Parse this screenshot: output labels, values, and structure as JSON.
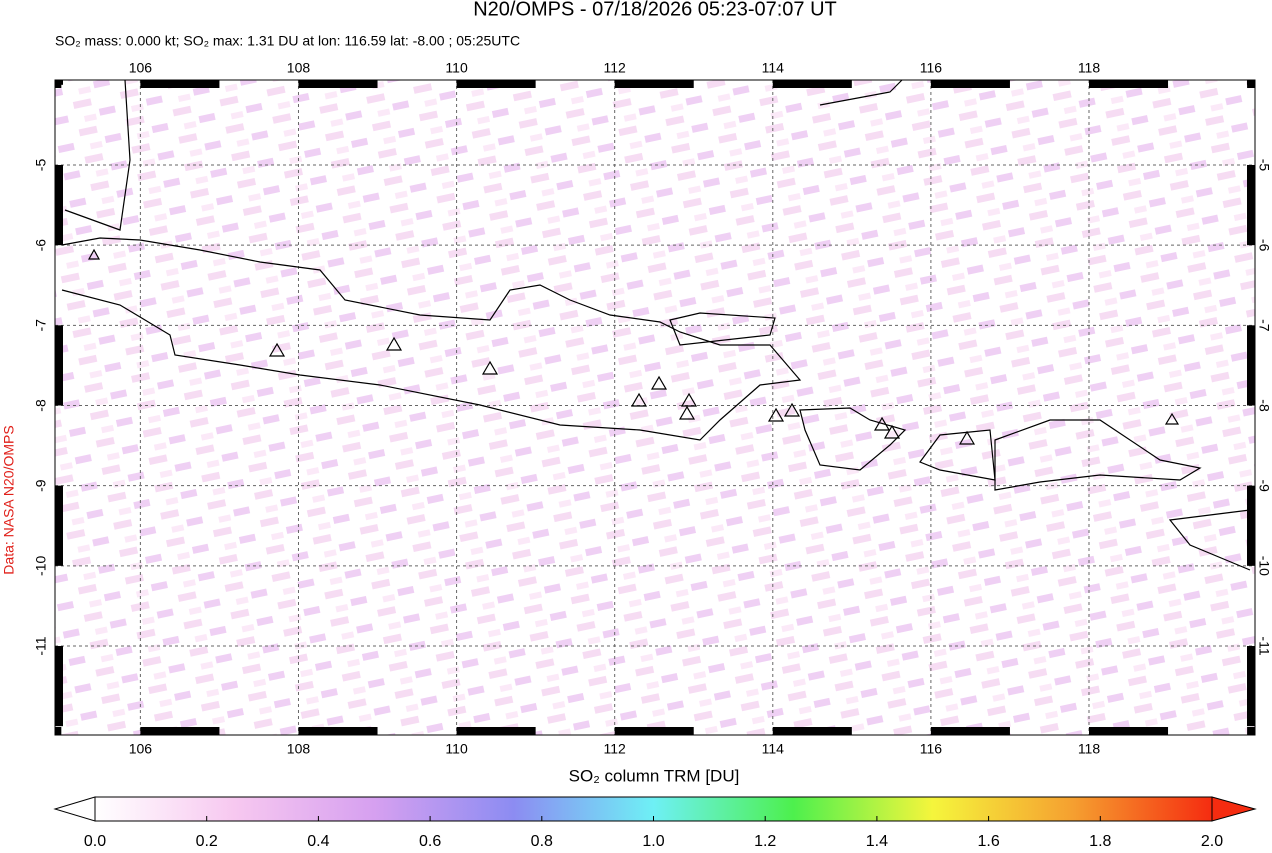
{
  "title": "N20/OMPS - 07/18/2026 05:23-07:07 UT",
  "subtitle": "SO₂ mass: 0.000 kt; SO₂ max: 1.31 DU at lon: 116.59 lat: -8.00 ; 05:25UTC",
  "credit": "Data: NASA N20/OMPS",
  "map": {
    "lon_range": [
      104.92,
      120.1
    ],
    "lat_range": [
      -3.94,
      -12.11
    ],
    "lon_ticks": [
      106,
      108,
      110,
      112,
      114,
      116,
      118
    ],
    "lat_ticks": [
      -5,
      -6,
      -7,
      -8,
      -9,
      -10,
      -11
    ]
  },
  "colorbar": {
    "label": "SO₂ column TRM [DU]",
    "range": [
      0,
      2
    ],
    "colors": [
      "#ffffff",
      "#f7c8f0",
      "#d6a0f0",
      "#8c8cf2",
      "#6ef0f5",
      "#4df04d",
      "#f5f53c",
      "#f5a030",
      "#f52c10"
    ],
    "ticks": [
      {
        "value": 0,
        "label": "0.0"
      },
      {
        "value": 0.2,
        "label": "0.2"
      },
      {
        "value": 0.4,
        "label": "0.4"
      },
      {
        "value": 0.6,
        "label": "0.6"
      },
      {
        "value": 0.8,
        "label": "0.8"
      },
      {
        "value": 1.0,
        "label": "1.0"
      },
      {
        "value": 1.2,
        "label": "1.2"
      },
      {
        "value": 1.4,
        "label": "1.4"
      },
      {
        "value": 1.6,
        "label": "1.6"
      },
      {
        "value": 1.8,
        "label": "1.8"
      },
      {
        "value": 2.0,
        "label": "2.0"
      }
    ]
  }
}
